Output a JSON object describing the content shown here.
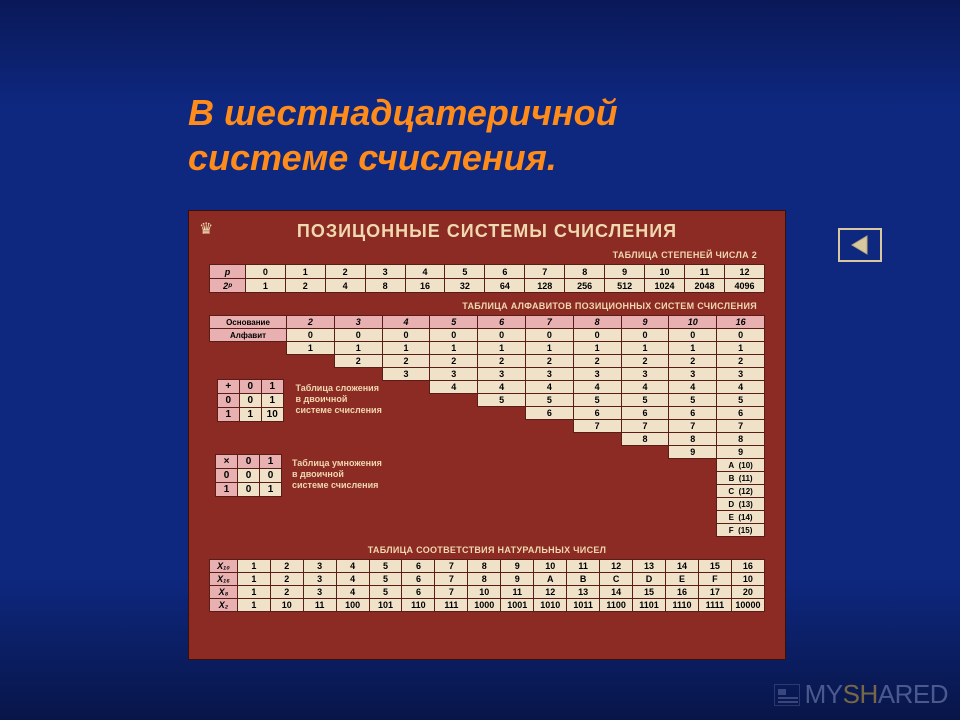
{
  "slide": {
    "title_line1": "В шестнадцатеричной",
    "title_line2": "системе счисления."
  },
  "poster": {
    "title": "ПОЗИЦОННЫЕ СИСТЕМЫ СЧИСЛЕНИЯ",
    "powers_label": "ТАБЛИЦА СТЕПЕНЕЙ ЧИСЛА 2",
    "alphabets_label": "ТАБЛИЦА АЛФАВИТОВ ПОЗИЦИОННЫХ СИСТЕМ СЧИСЛЕНИЯ",
    "correspondence_label": "ТАБЛИЦА СООТВЕТСТВИЯ НАТУРАЛЬНЫХ ЧИСЕЛ",
    "powers": {
      "row_p": "p",
      "row_2p": "2ᵖ",
      "exponents": [
        "0",
        "1",
        "2",
        "3",
        "4",
        "5",
        "6",
        "7",
        "8",
        "9",
        "10",
        "11",
        "12"
      ],
      "values": [
        "1",
        "2",
        "4",
        "8",
        "16",
        "32",
        "64",
        "128",
        "256",
        "512",
        "1024",
        "2048",
        "4096"
      ]
    },
    "alphabets": {
      "hdr_base": "Основание",
      "hdr_alpha": "Алфавит",
      "bases": [
        "2",
        "3",
        "4",
        "5",
        "6",
        "7",
        "8",
        "9",
        "10",
        "16"
      ],
      "matrix": [
        [
          "0",
          "0",
          "0",
          "0",
          "0",
          "0",
          "0",
          "0",
          "0",
          "0"
        ],
        [
          "1",
          "1",
          "1",
          "1",
          "1",
          "1",
          "1",
          "1",
          "1",
          "1"
        ],
        [
          "",
          "2",
          "2",
          "2",
          "2",
          "2",
          "2",
          "2",
          "2",
          "2"
        ],
        [
          "",
          "",
          "3",
          "3",
          "3",
          "3",
          "3",
          "3",
          "3",
          "3"
        ],
        [
          "",
          "",
          "",
          "4",
          "4",
          "4",
          "4",
          "4",
          "4",
          "4"
        ],
        [
          "",
          "",
          "",
          "",
          "5",
          "5",
          "5",
          "5",
          "5",
          "5"
        ],
        [
          "",
          "",
          "",
          "",
          "",
          "6",
          "6",
          "6",
          "6",
          "6"
        ],
        [
          "",
          "",
          "",
          "",
          "",
          "",
          "7",
          "7",
          "7",
          "7"
        ],
        [
          "",
          "",
          "",
          "",
          "",
          "",
          "",
          "8",
          "8",
          "8"
        ],
        [
          "",
          "",
          "",
          "",
          "",
          "",
          "",
          "",
          "9",
          "9"
        ]
      ],
      "hex_extra": [
        {
          "sym": "A",
          "dec": "(10)"
        },
        {
          "sym": "B",
          "dec": "(11)"
        },
        {
          "sym": "C",
          "dec": "(12)"
        },
        {
          "sym": "D",
          "dec": "(13)"
        },
        {
          "sym": "E",
          "dec": "(14)"
        },
        {
          "sym": "F",
          "dec": "(15)"
        }
      ]
    },
    "addition": {
      "caption_l1": "Таблица сложения",
      "caption_l2": "в двоичной",
      "caption_l3": "системе счисления",
      "op": "+",
      "headers": [
        "0",
        "1"
      ],
      "rows": [
        [
          "0",
          "0",
          "1"
        ],
        [
          "1",
          "1",
          "10"
        ]
      ]
    },
    "multiplication": {
      "caption_l1": "Таблица умножения",
      "caption_l2": "в двоичной",
      "caption_l3": "системе счисления",
      "op": "×",
      "headers": [
        "0",
        "1"
      ],
      "rows": [
        [
          "0",
          "0",
          "0"
        ],
        [
          "1",
          "0",
          "1"
        ]
      ]
    },
    "correspondence": {
      "rowhdrs": [
        "X₁₀",
        "X₁₆",
        "X₈",
        "X₂"
      ],
      "rows": [
        [
          "1",
          "2",
          "3",
          "4",
          "5",
          "6",
          "7",
          "8",
          "9",
          "10",
          "11",
          "12",
          "13",
          "14",
          "15",
          "16"
        ],
        [
          "1",
          "2",
          "3",
          "4",
          "5",
          "6",
          "7",
          "8",
          "9",
          "A",
          "B",
          "C",
          "D",
          "E",
          "F",
          "10"
        ],
        [
          "1",
          "2",
          "3",
          "4",
          "5",
          "6",
          "7",
          "10",
          "11",
          "12",
          "13",
          "14",
          "15",
          "16",
          "17",
          "20"
        ],
        [
          "1",
          "10",
          "11",
          "100",
          "101",
          "110",
          "111",
          "1000",
          "1001",
          "1010",
          "1011",
          "1100",
          "1101",
          "1110",
          "1111",
          "10000"
        ]
      ]
    }
  },
  "watermark": {
    "pre": "MY",
    "highlight": "SH",
    "post": "ARED"
  },
  "styling": {
    "bg_gradient": [
      "#0a1858",
      "#0e2880",
      "#081548"
    ],
    "title_color": "#ff8c1a",
    "poster_bg": "#8b2b24",
    "poster_text": "#f0d8b0",
    "cell_header_bg": "#e8b0b0",
    "cell_bg": "#f0e2c8",
    "cell_border": "#5a1c16",
    "title_fontsize": 36,
    "poster_width": 598,
    "poster_height": 450
  }
}
